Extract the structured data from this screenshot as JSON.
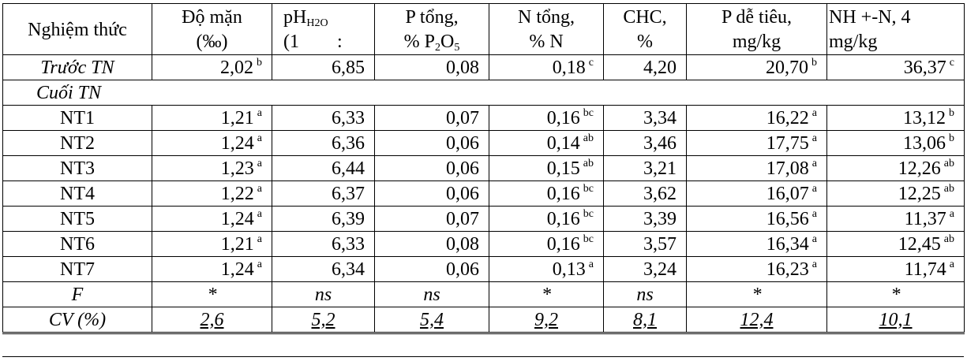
{
  "headers": [
    {
      "line1": "Nghiệm thức",
      "line2": ""
    },
    {
      "line1": "Độ mặn",
      "line2": "(‰)"
    },
    {
      "line1": "pH",
      "sub": "H2O",
      "line2": "(1        :"
    },
    {
      "line1": "P tổng,",
      "line2": "% P",
      "sub2": "2",
      "line2b": "O",
      "sub3": "5"
    },
    {
      "line1": "N tổng,",
      "line2": "% N"
    },
    {
      "line1": "CHC,",
      "line2": "%"
    },
    {
      "line1": "P dễ tiêu,",
      "line2": "mg/kg"
    },
    {
      "line1": "NH +-N, 4",
      "line2": "mg/kg"
    }
  ],
  "before": {
    "label": "Trước TN",
    "cells": [
      {
        "v": "2,02",
        "s": "b"
      },
      {
        "v": "6,85",
        "s": ""
      },
      {
        "v": "0,08",
        "s": ""
      },
      {
        "v": "0,18",
        "s": "c"
      },
      {
        "v": "4,20",
        "s": ""
      },
      {
        "v": "20,70",
        "s": "b"
      },
      {
        "v": "36,37",
        "s": "c"
      }
    ]
  },
  "section_label": "Cuối TN",
  "rows": [
    {
      "label": "NT1",
      "cells": [
        {
          "v": "1,21",
          "s": "a"
        },
        {
          "v": "6,33",
          "s": ""
        },
        {
          "v": "0,07",
          "s": ""
        },
        {
          "v": "0,16",
          "s": "bc"
        },
        {
          "v": "3,34",
          "s": ""
        },
        {
          "v": "16,22",
          "s": "a"
        },
        {
          "v": "13,12",
          "s": "b"
        }
      ]
    },
    {
      "label": "NT2",
      "cells": [
        {
          "v": "1,24",
          "s": "a"
        },
        {
          "v": "6,36",
          "s": ""
        },
        {
          "v": "0,06",
          "s": ""
        },
        {
          "v": "0,14",
          "s": "ab"
        },
        {
          "v": "3,46",
          "s": ""
        },
        {
          "v": "17,75",
          "s": "a"
        },
        {
          "v": "13,06",
          "s": "b"
        }
      ]
    },
    {
      "label": "NT3",
      "cells": [
        {
          "v": "1,23",
          "s": "a"
        },
        {
          "v": "6,44",
          "s": ""
        },
        {
          "v": "0,06",
          "s": ""
        },
        {
          "v": "0,15",
          "s": "ab"
        },
        {
          "v": "3,21",
          "s": ""
        },
        {
          "v": "17,08",
          "s": "a"
        },
        {
          "v": "12,26",
          "s": "ab"
        }
      ]
    },
    {
      "label": "NT4",
      "cells": [
        {
          "v": "1,22",
          "s": "a"
        },
        {
          "v": "6,37",
          "s": ""
        },
        {
          "v": "0,06",
          "s": ""
        },
        {
          "v": "0,16",
          "s": "bc"
        },
        {
          "v": "3,62",
          "s": ""
        },
        {
          "v": "16,07",
          "s": "a"
        },
        {
          "v": "12,25",
          "s": "ab"
        }
      ]
    },
    {
      "label": "NT5",
      "cells": [
        {
          "v": "1,24",
          "s": "a"
        },
        {
          "v": "6,39",
          "s": ""
        },
        {
          "v": "0,07",
          "s": ""
        },
        {
          "v": "0,16",
          "s": "bc"
        },
        {
          "v": "3,39",
          "s": ""
        },
        {
          "v": "16,56",
          "s": "a"
        },
        {
          "v": "11,37",
          "s": "a"
        }
      ]
    },
    {
      "label": "NT6",
      "cells": [
        {
          "v": "1,21",
          "s": "a"
        },
        {
          "v": "6,33",
          "s": ""
        },
        {
          "v": "0,08",
          "s": ""
        },
        {
          "v": "0,16",
          "s": "bc"
        },
        {
          "v": "3,57",
          "s": ""
        },
        {
          "v": "16,34",
          "s": "a"
        },
        {
          "v": "12,45",
          "s": "ab"
        }
      ]
    },
    {
      "label": "NT7",
      "cells": [
        {
          "v": "1,24",
          "s": "a"
        },
        {
          "v": "6,34",
          "s": ""
        },
        {
          "v": "0,06",
          "s": ""
        },
        {
          "v": "0,13",
          "s": "a"
        },
        {
          "v": "3,24",
          "s": ""
        },
        {
          "v": "16,23",
          "s": "a"
        },
        {
          "v": "11,74",
          "s": "a"
        }
      ]
    }
  ],
  "f_row": {
    "label": "F",
    "cells": [
      "*",
      "ns",
      "ns",
      "*",
      "ns",
      "*",
      "*"
    ]
  },
  "cv_row": {
    "label": "CV (%)",
    "cells": [
      "2,6",
      "5,2",
      "5,4",
      "9,2",
      "8,1",
      "12,4",
      "10,1"
    ]
  }
}
